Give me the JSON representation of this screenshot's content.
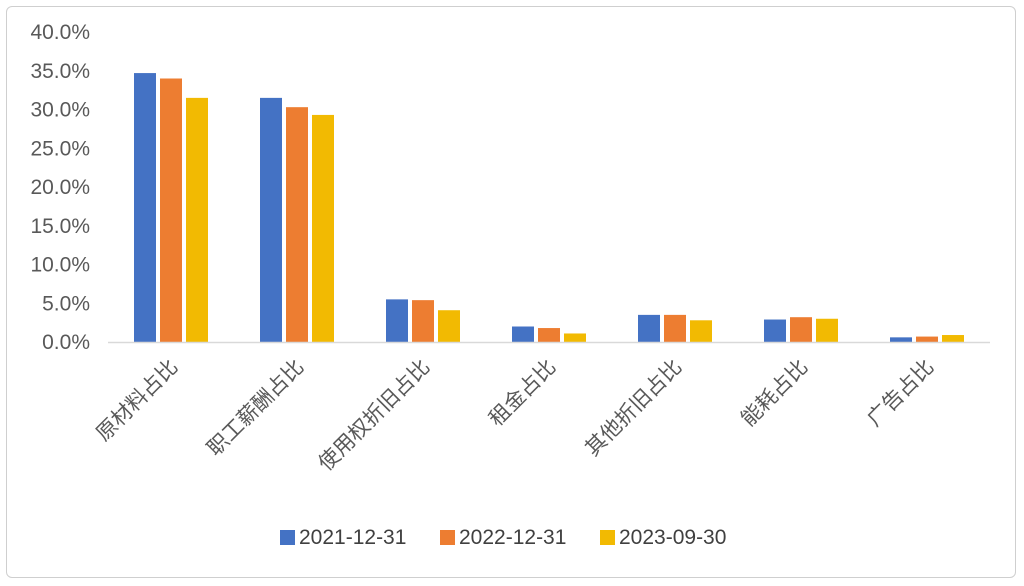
{
  "chart_data": {
    "type": "bar",
    "title": "",
    "xlabel": "",
    "ylabel": "",
    "ylim": [
      0,
      40
    ],
    "y_ticks": [
      "0.0%",
      "5.0%",
      "10.0%",
      "15.0%",
      "20.0%",
      "25.0%",
      "30.0%",
      "35.0%",
      "40.0%"
    ],
    "grid": false,
    "legend_position": "bottom",
    "categories": [
      "原材料占比",
      "职工薪酬占比",
      "使用权折旧占比",
      "租金占比",
      "其他折旧占比",
      "能耗占比",
      "广告占比"
    ],
    "series": [
      {
        "name": "2021-12-31",
        "color": "#4472C4",
        "values": [
          34.7,
          31.5,
          5.5,
          2.0,
          3.5,
          2.9,
          0.6
        ]
      },
      {
        "name": "2022-12-31",
        "color": "#ED7D31",
        "values": [
          34.0,
          30.3,
          5.4,
          1.8,
          3.5,
          3.2,
          0.7
        ]
      },
      {
        "name": "2023-09-30",
        "color": "#F2BA02",
        "values": [
          31.5,
          29.3,
          4.1,
          1.1,
          2.8,
          3.0,
          0.9
        ]
      }
    ]
  }
}
